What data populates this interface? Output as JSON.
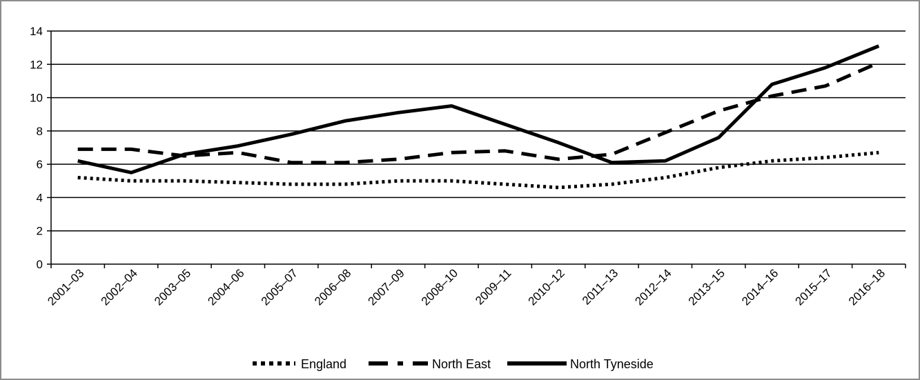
{
  "chart_data": {
    "type": "line",
    "title": "",
    "xlabel": "",
    "ylabel": "",
    "categories": [
      "2001–03",
      "2002–04",
      "2003–05",
      "2004–06",
      "2005–07",
      "2006–08",
      "2007–09",
      "2008–10",
      "2009–11",
      "2010–12",
      "2011–13",
      "2012–14",
      "2013–15",
      "2014–16",
      "2015–17",
      "2016–18"
    ],
    "ylim": [
      0,
      14
    ],
    "yticks": [
      0,
      2,
      4,
      6,
      8,
      10,
      12,
      14
    ],
    "grid": true,
    "legend_position": "bottom",
    "series": [
      {
        "name": "England",
        "style": "dotted",
        "color": "#000000",
        "values": [
          5.2,
          5.0,
          5.0,
          4.9,
          4.8,
          4.8,
          5.0,
          5.0,
          4.8,
          4.6,
          4.8,
          5.2,
          5.8,
          6.2,
          6.4,
          6.7
        ]
      },
      {
        "name": "North East",
        "style": "dashed",
        "color": "#000000",
        "values": [
          6.9,
          6.9,
          6.5,
          6.7,
          6.1,
          6.1,
          6.3,
          6.7,
          6.8,
          6.3,
          6.6,
          7.9,
          9.2,
          10.1,
          10.7,
          12.1
        ]
      },
      {
        "name": "North Tyneside",
        "style": "solid",
        "color": "#000000",
        "values": [
          6.2,
          5.5,
          6.6,
          7.1,
          7.8,
          8.6,
          9.1,
          9.5,
          8.4,
          7.3,
          6.1,
          6.2,
          7.6,
          10.8,
          11.8,
          13.1
        ]
      }
    ]
  }
}
